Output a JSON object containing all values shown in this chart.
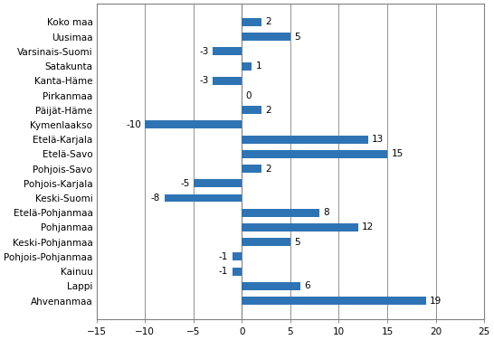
{
  "categories": [
    "Ahvenanmaa",
    "Lappi",
    "Kainuu",
    "Pohjois-Pohjanmaa",
    "Keski-Pohjanmaa",
    "Pohjanmaa",
    "Etelä-Pohjanmaa",
    "Keski-Suomi",
    "Pohjois-Karjala",
    "Pohjois-Savo",
    "Etelä-Savo",
    "Etelä-Karjala",
    "Kymenlaakso",
    "Päijät-Häme",
    "Pirkanmaa",
    "Kanta-Häme",
    "Satakunta",
    "Varsinais-Suomi",
    "Uusimaa",
    "Koko maa"
  ],
  "values": [
    19,
    6,
    -1,
    -1,
    5,
    12,
    8,
    -8,
    -5,
    2,
    15,
    13,
    -10,
    2,
    0,
    -3,
    1,
    -3,
    5,
    2
  ],
  "bar_color": "#2E74B5",
  "xlim": [
    -15,
    25
  ],
  "xticks": [
    -15,
    -10,
    -5,
    0,
    5,
    10,
    15,
    20,
    25
  ],
  "grid_color": "#808080",
  "spine_color": "#808080",
  "background_color": "#ffffff",
  "label_fontsize": 7.5,
  "value_fontsize": 7.5,
  "bar_height": 0.55
}
